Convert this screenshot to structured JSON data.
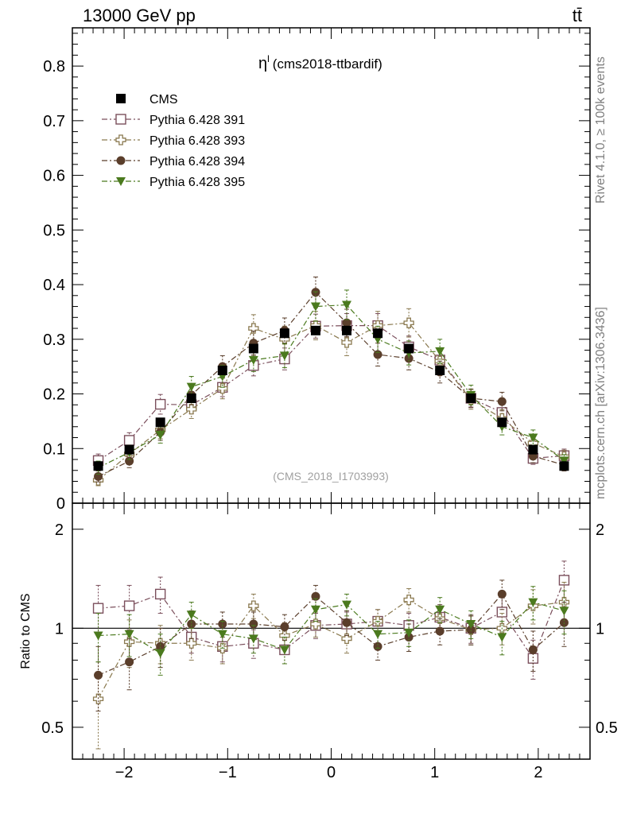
{
  "header": {
    "energy_label": "13000 GeV pp",
    "process_label": "tt̄"
  },
  "plot_title": {
    "symbol": "η",
    "superscript": "l",
    "analysis": "(cms2018-ttbardif)"
  },
  "side_labels": {
    "rivet": "Rivet 4.1.0, ≥ 100k events",
    "source": "mcplots.cern.ch [arXiv:1306.3436]"
  },
  "watermark": "(CMS_2018_I1703993)",
  "colors": {
    "cms": "#000000",
    "p391": "#7b4f5c",
    "p393": "#8b7a50",
    "p394": "#5a3e2b",
    "p395": "#4b7a1e"
  },
  "chart_data": [
    {
      "type": "scatter",
      "panel": "main",
      "title": "η^l (cms2018-ttbardif)",
      "xlabel": "",
      "ylabel": "",
      "xlim": [
        -2.5,
        2.5
      ],
      "ylim": [
        0,
        0.87
      ],
      "y_ticks": [
        "0",
        "0.1",
        "0.2",
        "0.3",
        "0.4",
        "0.5",
        "0.6",
        "0.7",
        "0.8"
      ],
      "x": [
        -2.25,
        -1.95,
        -1.65,
        -1.35,
        -1.05,
        -0.75,
        -0.45,
        -0.15,
        0.15,
        0.45,
        0.75,
        1.05,
        1.35,
        1.65,
        1.95,
        2.25
      ],
      "series": [
        {
          "name": "CMS",
          "key": "cms",
          "marker": "filled-square",
          "line": false,
          "values": [
            0.068,
            0.098,
            0.148,
            0.192,
            0.243,
            0.283,
            0.311,
            0.316,
            0.316,
            0.311,
            0.283,
            0.243,
            0.192,
            0.148,
            0.098,
            0.068
          ],
          "errors": [
            0.004,
            0.004,
            0.005,
            0.006,
            0.006,
            0.007,
            0.007,
            0.007,
            0.007,
            0.007,
            0.007,
            0.006,
            0.006,
            0.005,
            0.004,
            0.004
          ]
        },
        {
          "name": "Pythia 6.428 391",
          "key": "p391",
          "marker": "open-square",
          "line": true,
          "values": [
            0.078,
            0.115,
            0.181,
            0.18,
            0.212,
            0.252,
            0.264,
            0.324,
            0.325,
            0.325,
            0.286,
            0.262,
            0.192,
            0.166,
            0.082,
            0.087
          ],
          "errors": [
            0.012,
            0.014,
            0.018,
            0.016,
            0.017,
            0.019,
            0.02,
            0.022,
            0.022,
            0.022,
            0.02,
            0.019,
            0.016,
            0.015,
            0.011,
            0.012
          ]
        },
        {
          "name": "Pythia 6.428 393",
          "key": "p393",
          "marker": "open-cross",
          "line": true,
          "values": [
            0.042,
            0.09,
            0.134,
            0.172,
            0.21,
            0.32,
            0.3,
            0.325,
            0.294,
            0.325,
            0.33,
            0.26,
            0.19,
            0.155,
            0.11,
            0.085
          ],
          "errors": [
            0.01,
            0.013,
            0.016,
            0.017,
            0.019,
            0.025,
            0.024,
            0.026,
            0.024,
            0.026,
            0.026,
            0.022,
            0.018,
            0.016,
            0.013,
            0.012
          ]
        },
        {
          "name": "Pythia 6.428 394",
          "key": "p394",
          "marker": "filled-circle",
          "line": true,
          "values": [
            0.049,
            0.077,
            0.13,
            0.198,
            0.25,
            0.293,
            0.316,
            0.386,
            0.33,
            0.272,
            0.265,
            0.24,
            0.192,
            0.186,
            0.086,
            0.07
          ],
          "errors": [
            0.01,
            0.012,
            0.015,
            0.018,
            0.02,
            0.022,
            0.023,
            0.028,
            0.025,
            0.021,
            0.021,
            0.02,
            0.017,
            0.017,
            0.012,
            0.011
          ]
        },
        {
          "name": "Pythia 6.428 395",
          "key": "p395",
          "marker": "filled-triangle-down",
          "line": true,
          "values": [
            0.065,
            0.093,
            0.125,
            0.213,
            0.232,
            0.262,
            0.27,
            0.36,
            0.363,
            0.3,
            0.275,
            0.278,
            0.198,
            0.14,
            0.12,
            0.078
          ],
          "errors": [
            0.012,
            0.013,
            0.015,
            0.019,
            0.02,
            0.021,
            0.022,
            0.027,
            0.027,
            0.024,
            0.022,
            0.022,
            0.018,
            0.015,
            0.014,
            0.011
          ]
        }
      ]
    },
    {
      "type": "scatter",
      "panel": "ratio",
      "xlabel": "",
      "ylabel": "Ratio to CMS",
      "xlim": [
        -2.5,
        2.5
      ],
      "ylim": [
        0.4,
        2.4
      ],
      "y_scale": "log",
      "y_ticks": [
        {
          "value": 0.5,
          "label": "0.5"
        },
        {
          "value": 1,
          "label": "1"
        },
        {
          "value": 2,
          "label": "2"
        }
      ],
      "x_ticks": [
        {
          "value": -2,
          "label": "−2"
        },
        {
          "value": -1,
          "label": "−1"
        },
        {
          "value": 0,
          "label": "0"
        },
        {
          "value": 1,
          "label": "1"
        },
        {
          "value": 2,
          "label": "2"
        }
      ],
      "reference_line": 1,
      "x": [
        -2.25,
        -1.95,
        -1.65,
        -1.35,
        -1.05,
        -0.75,
        -0.45,
        -0.15,
        0.15,
        0.45,
        0.75,
        1.05,
        1.35,
        1.65,
        1.95,
        2.25
      ],
      "series": [
        {
          "name": "Pythia 6.428 391",
          "key": "p391",
          "marker": "open-square",
          "values": [
            1.15,
            1.17,
            1.27,
            0.94,
            0.88,
            0.9,
            0.86,
            1.02,
            1.03,
            1.05,
            1.02,
            1.08,
            1.0,
            1.12,
            0.81,
            1.4
          ],
          "errors": [
            0.2,
            0.18,
            0.16,
            0.1,
            0.09,
            0.09,
            0.08,
            0.09,
            0.09,
            0.09,
            0.09,
            0.1,
            0.1,
            0.12,
            0.11,
            0.2
          ]
        },
        {
          "name": "Pythia 6.428 393",
          "key": "p393",
          "marker": "open-cross",
          "values": [
            0.61,
            0.91,
            0.9,
            0.9,
            0.87,
            1.17,
            0.95,
            1.03,
            0.93,
            1.05,
            1.22,
            1.07,
            0.99,
            1.0,
            1.17,
            1.2
          ],
          "errors": [
            0.18,
            0.15,
            0.12,
            0.1,
            0.09,
            0.1,
            0.09,
            0.09,
            0.09,
            0.09,
            0.1,
            0.1,
            0.1,
            0.11,
            0.14,
            0.18
          ]
        },
        {
          "name": "Pythia 6.428 394",
          "key": "p394",
          "marker": "filled-circle",
          "values": [
            0.72,
            0.79,
            0.88,
            1.03,
            1.03,
            1.03,
            1.01,
            1.25,
            1.04,
            0.88,
            0.94,
            0.98,
            0.99,
            1.27,
            0.86,
            1.04
          ],
          "errors": [
            0.16,
            0.14,
            0.12,
            0.1,
            0.09,
            0.09,
            0.09,
            0.1,
            0.09,
            0.08,
            0.09,
            0.09,
            0.1,
            0.13,
            0.12,
            0.16
          ]
        },
        {
          "name": "Pythia 6.428 395",
          "key": "p395",
          "marker": "filled-triangle-down",
          "values": [
            0.95,
            0.96,
            0.84,
            1.1,
            0.96,
            0.93,
            0.86,
            1.14,
            1.18,
            0.96,
            0.97,
            1.14,
            1.03,
            0.94,
            1.2,
            1.13
          ],
          "errors": [
            0.16,
            0.14,
            0.12,
            0.1,
            0.09,
            0.09,
            0.08,
            0.09,
            0.09,
            0.09,
            0.09,
            0.1,
            0.1,
            0.11,
            0.14,
            0.17
          ]
        }
      ]
    }
  ]
}
